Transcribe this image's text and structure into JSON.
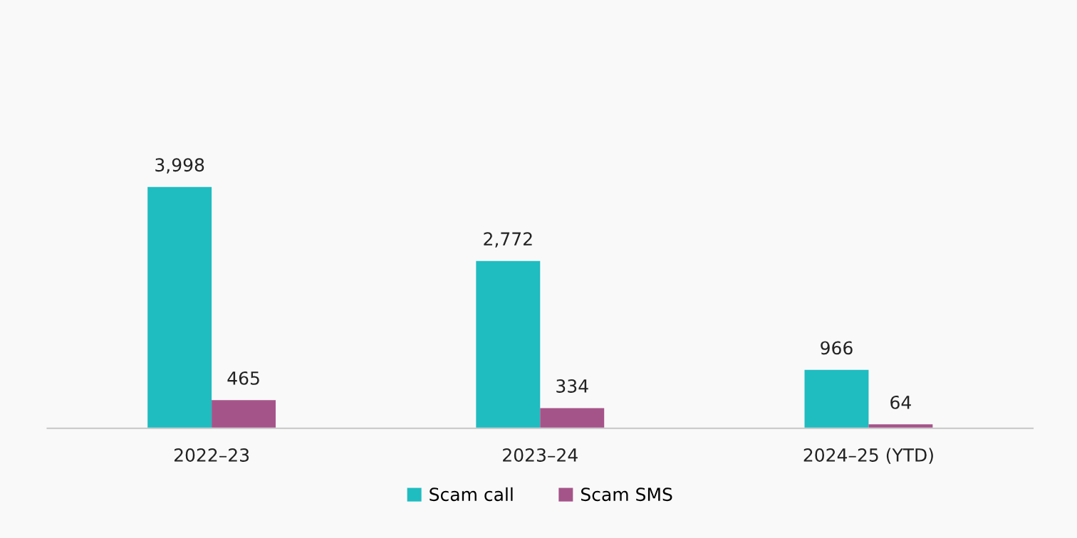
{
  "chart_data": {
    "type": "bar",
    "categories": [
      "2022–23",
      "2023–24",
      "2024–25 (YTD)"
    ],
    "series": [
      {
        "name": "Scam call",
        "color": "#1fbcc0",
        "values": [
          3998,
          2772,
          966
        ],
        "value_labels": [
          "3,998",
          "2,772",
          "966"
        ]
      },
      {
        "name": "Scam SMS",
        "color": "#a5548a",
        "values": [
          465,
          334,
          64
        ],
        "value_labels": [
          "465",
          "334",
          "64"
        ]
      }
    ],
    "tick_labels": "x",
    "grid": false,
    "legend": "bottom"
  }
}
